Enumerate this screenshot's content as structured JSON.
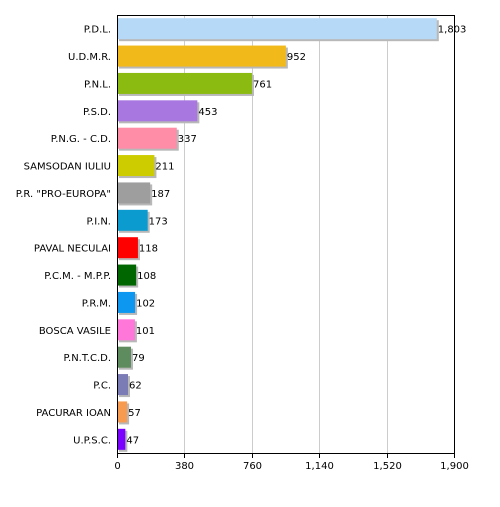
{
  "chart_data": {
    "type": "bar",
    "orientation": "horizontal",
    "categories": [
      "P.D.L.",
      "U.D.M.R.",
      "P.N.L.",
      "P.S.D.",
      "P.N.G. - C.D.",
      "SAMSODAN IULIU",
      "P.R. \"PRO-EUROPA\"",
      "P.I.N.",
      "PAVAL NECULAI",
      "P.C.M. - M.P.P.",
      "P.R.M.",
      "BOSCA VASILE",
      "P.N.T.C.D.",
      "P.C.",
      "PACURAR IOAN",
      "U.P.S.C."
    ],
    "values": [
      1803,
      952,
      761,
      453,
      337,
      211,
      187,
      173,
      118,
      108,
      102,
      101,
      79,
      62,
      57,
      47
    ],
    "value_labels": [
      "1,803",
      "952",
      "761",
      "453",
      "337",
      "211",
      "187",
      "173",
      "118",
      "108",
      "102",
      "101",
      "79",
      "62",
      "57",
      "47"
    ],
    "colors": [
      "#b5d9f7",
      "#f2b91a",
      "#8bba11",
      "#a877e0",
      "#ff8da8",
      "#cccc00",
      "#9e9e9e",
      "#0b9bcf",
      "#ff0000",
      "#006600",
      "#0e97f0",
      "#ff77d9",
      "#5e8c5e",
      "#7b7bb5",
      "#f79b50",
      "#7a00ff"
    ],
    "xlim": [
      0,
      1900
    ],
    "xticks": [
      0,
      380,
      760,
      1140,
      1520,
      1900
    ],
    "xtick_labels": [
      "0",
      "380",
      "760",
      "1,140",
      "1,520",
      "1,900"
    ],
    "grid": true,
    "title": "",
    "xlabel": "",
    "ylabel": ""
  }
}
